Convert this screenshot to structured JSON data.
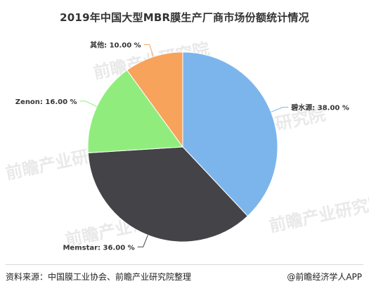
{
  "chart_data": {
    "type": "pie",
    "title": "2019年中国大型MBR膜生产厂商市场份额统计情况",
    "slices": [
      {
        "name": "碧水源",
        "value": 38.0,
        "label": "碧水源: 38.00 %",
        "color": "#7cb5ec",
        "label_side": "right"
      },
      {
        "name": "Memstar",
        "value": 36.0,
        "label": "Memstar: 36.00 %",
        "color": "#434348",
        "label_side": "left"
      },
      {
        "name": "Zenon",
        "value": 16.0,
        "label": "Zenon: 16.00 %",
        "color": "#90ed7d",
        "label_side": "left"
      },
      {
        "name": "其他",
        "value": 10.0,
        "label": "其他: 10.00 %",
        "color": "#f7a35c",
        "label_side": "left"
      }
    ],
    "start_angle_deg": 0,
    "direction": "clockwise"
  },
  "footer": {
    "source": "资料来源：中国膜工业协会、前瞻产业研究院整理",
    "brand": "@前瞻经济学人APP"
  },
  "watermark": {
    "text": "前瞻产业研究院"
  }
}
